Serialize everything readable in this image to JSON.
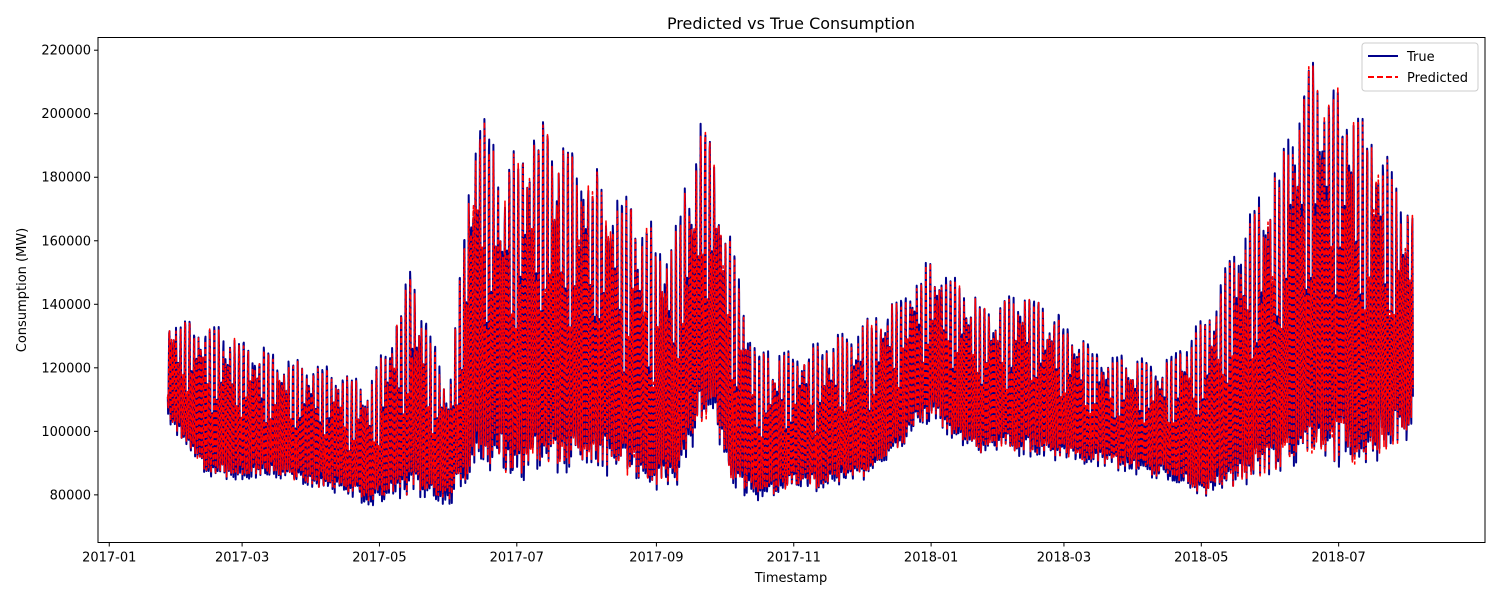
{
  "chart_data": {
    "type": "line",
    "title": "Predicted vs True Consumption",
    "xlabel": "Timestamp",
    "ylabel": "Consumption (MW)",
    "xlim": [
      "2016-12-27",
      "2018-09-04"
    ],
    "ylim": [
      65000,
      224000
    ],
    "x_ticks": [
      "2017-01",
      "2017-03",
      "2017-05",
      "2017-07",
      "2017-09",
      "2017-11",
      "2018-01",
      "2018-03",
      "2018-05",
      "2018-07"
    ],
    "x_tick_dates": [
      "2017-01-01",
      "2017-03-01",
      "2017-05-01",
      "2017-07-01",
      "2017-09-01",
      "2017-11-01",
      "2018-01-01",
      "2018-03-01",
      "2018-05-01",
      "2018-07-01"
    ],
    "y_ticks": [
      80000,
      100000,
      120000,
      140000,
      160000,
      180000,
      200000,
      220000
    ],
    "y_tick_labels": [
      "80000",
      "100000",
      "120000",
      "140000",
      "160000",
      "180000",
      "200000",
      "220000"
    ],
    "grid": false,
    "legend_position": "top-right",
    "date_range": [
      "2017-01-27",
      "2018-08-03"
    ],
    "sampling": "hourly",
    "series": [
      {
        "name": "True",
        "color": "#00008b",
        "style": "solid",
        "envelope_low": [
          [
            "2017-01-27",
            100000
          ],
          [
            "2017-02-15",
            80000
          ],
          [
            "2017-03-15",
            82000
          ],
          [
            "2017-04-10",
            78000
          ],
          [
            "2017-04-27",
            73000
          ],
          [
            "2017-05-15",
            74000
          ],
          [
            "2017-06-01",
            74000
          ],
          [
            "2017-06-20",
            82000
          ],
          [
            "2017-07-01",
            75000
          ],
          [
            "2017-07-15",
            80000
          ],
          [
            "2017-08-10",
            80000
          ],
          [
            "2017-09-08",
            73000
          ],
          [
            "2017-09-25",
            100000
          ],
          [
            "2017-10-05",
            74000
          ],
          [
            "2017-11-01",
            77000
          ],
          [
            "2017-12-01",
            80000
          ],
          [
            "2018-01-01",
            100000
          ],
          [
            "2018-01-15",
            90000
          ],
          [
            "2018-02-15",
            88000
          ],
          [
            "2018-03-15",
            87000
          ],
          [
            "2018-04-15",
            82000
          ],
          [
            "2018-05-05",
            74000
          ],
          [
            "2018-05-25",
            78000
          ],
          [
            "2018-06-20",
            80000
          ],
          [
            "2018-07-15",
            82000
          ],
          [
            "2018-08-03",
            92000
          ]
        ],
        "envelope_high": [
          [
            "2017-01-27",
            135000
          ],
          [
            "2017-02-15",
            134000
          ],
          [
            "2017-03-15",
            125000
          ],
          [
            "2017-04-10",
            120000
          ],
          [
            "2017-04-27",
            115000
          ],
          [
            "2017-05-15",
            151000
          ],
          [
            "2017-06-01",
            113000
          ],
          [
            "2017-06-13",
            205000
          ],
          [
            "2017-06-25",
            183000
          ],
          [
            "2017-07-10",
            200000
          ],
          [
            "2017-07-20",
            190000
          ],
          [
            "2017-08-05",
            183000
          ],
          [
            "2017-08-20",
            173000
          ],
          [
            "2017-09-08",
            160000
          ],
          [
            "2017-09-22",
            201000
          ],
          [
            "2017-10-15",
            125000
          ],
          [
            "2017-11-15",
            128000
          ],
          [
            "2017-12-15",
            141000
          ],
          [
            "2018-01-01",
            155000
          ],
          [
            "2018-01-25",
            140000
          ],
          [
            "2018-02-15",
            145000
          ],
          [
            "2018-03-15",
            125000
          ],
          [
            "2018-04-15",
            122000
          ],
          [
            "2018-05-01",
            135000
          ],
          [
            "2018-05-25",
            172000
          ],
          [
            "2018-06-05",
            185000
          ],
          [
            "2018-06-18",
            217000
          ],
          [
            "2018-06-30",
            210000
          ],
          [
            "2018-07-20",
            190000
          ],
          [
            "2018-08-03",
            171000
          ]
        ]
      },
      {
        "name": "Predicted",
        "color": "#ff0000",
        "style": "dashed",
        "envelope_low": [
          [
            "2017-01-27",
            101000
          ],
          [
            "2017-02-15",
            81000
          ],
          [
            "2017-03-15",
            83000
          ],
          [
            "2017-04-10",
            79000
          ],
          [
            "2017-04-27",
            75000
          ],
          [
            "2017-05-15",
            76000
          ],
          [
            "2017-06-01",
            76000
          ],
          [
            "2017-06-20",
            83000
          ],
          [
            "2017-07-01",
            77000
          ],
          [
            "2017-07-15",
            81000
          ],
          [
            "2017-08-10",
            81000
          ],
          [
            "2017-09-08",
            75000
          ],
          [
            "2017-09-25",
            101000
          ],
          [
            "2017-10-05",
            76000
          ],
          [
            "2017-11-01",
            78000
          ],
          [
            "2017-12-01",
            81000
          ],
          [
            "2018-01-01",
            101000
          ],
          [
            "2018-01-15",
            91000
          ],
          [
            "2018-02-15",
            89000
          ],
          [
            "2018-03-15",
            88000
          ],
          [
            "2018-04-15",
            83000
          ],
          [
            "2018-05-05",
            75000
          ],
          [
            "2018-05-25",
            79000
          ],
          [
            "2018-06-20",
            81000
          ],
          [
            "2018-07-15",
            83000
          ],
          [
            "2018-08-03",
            93000
          ]
        ],
        "envelope_high": [
          [
            "2017-01-27",
            135000
          ],
          [
            "2017-02-15",
            133000
          ],
          [
            "2017-03-15",
            124000
          ],
          [
            "2017-04-10",
            119000
          ],
          [
            "2017-04-27",
            114000
          ],
          [
            "2017-05-15",
            149000
          ],
          [
            "2017-06-01",
            112000
          ],
          [
            "2017-06-13",
            204000
          ],
          [
            "2017-06-25",
            182000
          ],
          [
            "2017-07-10",
            199000
          ],
          [
            "2017-07-20",
            189000
          ],
          [
            "2017-08-05",
            182000
          ],
          [
            "2017-08-20",
            172000
          ],
          [
            "2017-09-08",
            158000
          ],
          [
            "2017-09-22",
            200000
          ],
          [
            "2017-10-15",
            124000
          ],
          [
            "2017-11-15",
            127000
          ],
          [
            "2017-12-15",
            140000
          ],
          [
            "2018-01-01",
            154000
          ],
          [
            "2018-01-25",
            139000
          ],
          [
            "2018-02-15",
            144000
          ],
          [
            "2018-03-15",
            124000
          ],
          [
            "2018-04-15",
            121000
          ],
          [
            "2018-05-01",
            134000
          ],
          [
            "2018-05-25",
            170000
          ],
          [
            "2018-06-05",
            184000
          ],
          [
            "2018-06-18",
            216000
          ],
          [
            "2018-06-30",
            209000
          ],
          [
            "2018-07-20",
            189000
          ],
          [
            "2018-08-03",
            170000
          ]
        ]
      }
    ]
  }
}
